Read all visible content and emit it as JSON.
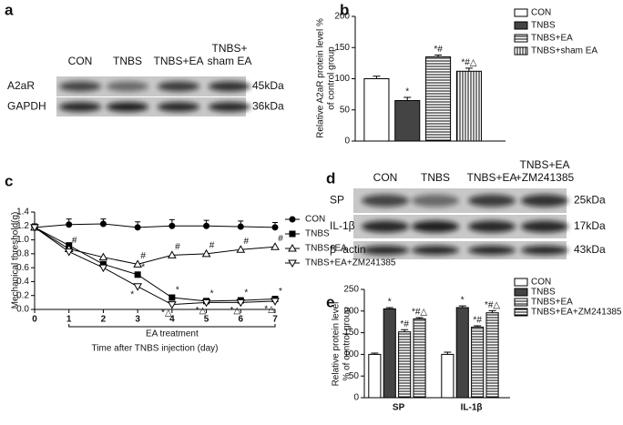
{
  "blots": [
    {
      "panel": "a",
      "columns": [
        "CON",
        "TNBS",
        "TNBS+EA",
        [
          "TNBS+",
          "sham EA"
        ]
      ],
      "rows": [
        {
          "name": "A2aR",
          "kda": "45kDa"
        },
        {
          "name": "GAPDH",
          "kda": "36kDa"
        }
      ]
    },
    {
      "panel": "d",
      "columns": [
        "CON",
        "TNBS",
        "TNBS+EA",
        [
          "TNBS+EA",
          "+ZM241385"
        ]
      ],
      "rows": [
        {
          "name": "SP",
          "kda": "25kDa"
        },
        {
          "name": "IL-1β",
          "kda": "17kDa"
        },
        {
          "name": "β -actin",
          "kda": "43kDa"
        }
      ]
    }
  ],
  "chart_data": [
    {
      "panel": "b",
      "type": "bar",
      "ylabel": [
        "Relative A2aR protein level %",
        "of control group"
      ],
      "ylim": [
        0,
        200
      ],
      "yticks": [
        0,
        50,
        100,
        150,
        200
      ],
      "series": [
        {
          "name": "CON",
          "fill": "white",
          "values": [
            100
          ],
          "errors": [
            4
          ],
          "annotations": [
            null
          ]
        },
        {
          "name": "TNBS",
          "fill": "#444444",
          "values": [
            65
          ],
          "errors": [
            5
          ],
          "annotations": [
            "*"
          ]
        },
        {
          "name": "TNBS+EA",
          "fill": "hlines",
          "values": [
            135
          ],
          "errors": [
            3
          ],
          "annotations": [
            "*#"
          ]
        },
        {
          "name": "TNBS+sham EA",
          "fill": "vlines",
          "values": [
            112
          ],
          "errors": [
            5
          ],
          "annotations": [
            "*#△"
          ]
        }
      ]
    },
    {
      "panel": "c",
      "type": "line",
      "ylabel": [
        "Mechanical threshold(g)"
      ],
      "xlabel": "Time  after TNBS injection (day)",
      "bracket_label": "EA treatment",
      "bracket": [
        1,
        7
      ],
      "x": [
        0,
        1,
        2,
        3,
        4,
        5,
        6,
        7
      ],
      "xlim": [
        0,
        7
      ],
      "xticks": [
        0,
        1,
        2,
        3,
        4,
        5,
        6,
        7
      ],
      "ylim": [
        0,
        1.4
      ],
      "yticks": [
        {
          "value": 0,
          "label": "0.0"
        },
        0.2,
        0.4,
        0.6,
        0.8,
        {
          "value": 1,
          "label": "1.0"
        },
        1.2,
        1.4
      ],
      "series": [
        {
          "name": "CON",
          "marker": "circle",
          "filled": true,
          "values": [
            1.18,
            1.22,
            1.23,
            1.18,
            1.2,
            1.2,
            1.19,
            1.18
          ],
          "errors": [
            0.05,
            0.08,
            0.07,
            0.08,
            0.09,
            0.08,
            0.08,
            0.07
          ]
        },
        {
          "name": "TNBS",
          "marker": "square",
          "filled": true,
          "values": [
            1.18,
            0.92,
            0.65,
            0.5,
            0.17,
            0.12,
            0.13,
            0.15
          ],
          "annotations": [
            null,
            null,
            null,
            "*",
            "*",
            "*",
            "*",
            "*"
          ]
        },
        {
          "name": "TNBS+EA",
          "marker": "triangle-up",
          "filled": false,
          "values": [
            1.18,
            0.87,
            0.75,
            0.65,
            0.78,
            0.8,
            0.86,
            0.9
          ],
          "annotations": [
            null,
            "#",
            null,
            "#",
            "#",
            "#",
            "#",
            "#"
          ]
        },
        {
          "name": "TNBS+EA+ZM241385",
          "marker": "triangle-down",
          "filled": false,
          "values": [
            1.18,
            0.83,
            0.6,
            0.33,
            0.07,
            0.1,
            0.1,
            0.12
          ],
          "annotations": [
            null,
            null,
            null,
            "*",
            "*△",
            "*△",
            "*△",
            "*△"
          ]
        }
      ]
    },
    {
      "panel": "e",
      "type": "bar",
      "ylabel": [
        "Relative protein level",
        "% of control group"
      ],
      "categories": [
        "SP",
        "IL-1β"
      ],
      "ylim": [
        0,
        250
      ],
      "yticks": [
        0,
        50,
        100,
        150,
        200,
        250
      ],
      "series": [
        {
          "name": "CON",
          "fill": "white",
          "values": [
            100,
            100
          ],
          "errors": [
            3,
            5
          ],
          "annotations": [
            null,
            null
          ]
        },
        {
          "name": "TNBS",
          "fill": "#444444",
          "values": [
            205,
            208
          ],
          "errors": [
            3,
            4
          ],
          "annotations": [
            "*",
            "*"
          ]
        },
        {
          "name": "TNBS+EA",
          "fill": "hlines",
          "values": [
            152,
            163
          ],
          "errors": [
            5,
            3
          ],
          "annotations": [
            "*#",
            "*#"
          ]
        },
        {
          "name": "TNBS+EA+ZM241385",
          "fill": "hlines",
          "values": [
            182,
            196
          ],
          "errors": [
            3,
            5
          ],
          "annotations": [
            "*#△",
            "*#△"
          ]
        }
      ]
    }
  ]
}
